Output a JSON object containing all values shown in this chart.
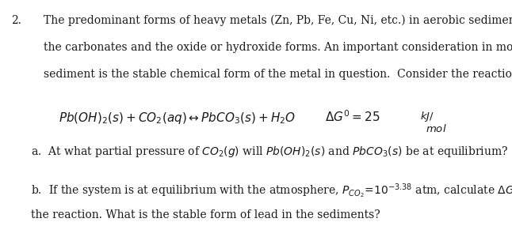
{
  "bg_color": "#ffffff",
  "text_color": "#1a1a1a",
  "figsize": [
    6.46,
    2.86
  ],
  "dpi": 100,
  "para1": "The predominant forms of heavy metals (Zn, Pb, Fe, Cu, Ni, etc.) in aerobic sediments are",
  "para2": "the carbonates and the oxide or hydroxide forms. An important consideration in modeling the",
  "para3": "sediment is the stable chemical form of the metal in question.  Consider the reaction:",
  "font_size_main": 10.0,
  "font_size_eq": 11.0
}
